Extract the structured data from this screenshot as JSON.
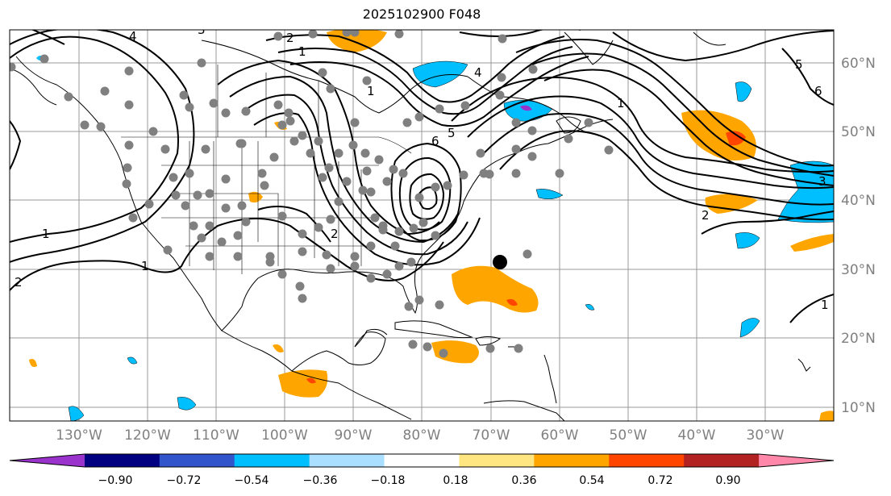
{
  "title": "2025102900 F048",
  "map": {
    "lat_labels": [
      "60°N",
      "50°N",
      "40°N",
      "30°N",
      "20°N",
      "10°N"
    ],
    "lon_labels": [
      "130°W",
      "120°W",
      "110°W",
      "100°W",
      "90°W",
      "80°W",
      "70°W",
      "60°W",
      "50°W",
      "40°W",
      "30°W"
    ],
    "contour_labels": [
      "1",
      "1",
      "1",
      "1",
      "1",
      "1",
      "2",
      "2",
      "2",
      "2",
      "4",
      "4",
      "5",
      "5",
      "6",
      "6",
      "3",
      "3"
    ]
  },
  "colorbar": {
    "colors": [
      "#9933cc",
      "#000080",
      "#3355cc",
      "#00bfff",
      "#aadfff",
      "#ffffff",
      "#ffe680",
      "#ffa500",
      "#ff4500",
      "#b22222",
      "#ff88aa"
    ],
    "tick_labels": [
      "−0.90",
      "−0.72",
      "−0.54",
      "−0.36",
      "−0.18",
      "0.18",
      "0.36",
      "0.54",
      "0.72",
      "0.90"
    ]
  },
  "legend_colors": {
    "land_outline": "#000000",
    "station_marker": "#808080",
    "storm_marker": "#000000",
    "grid": "#999999"
  }
}
